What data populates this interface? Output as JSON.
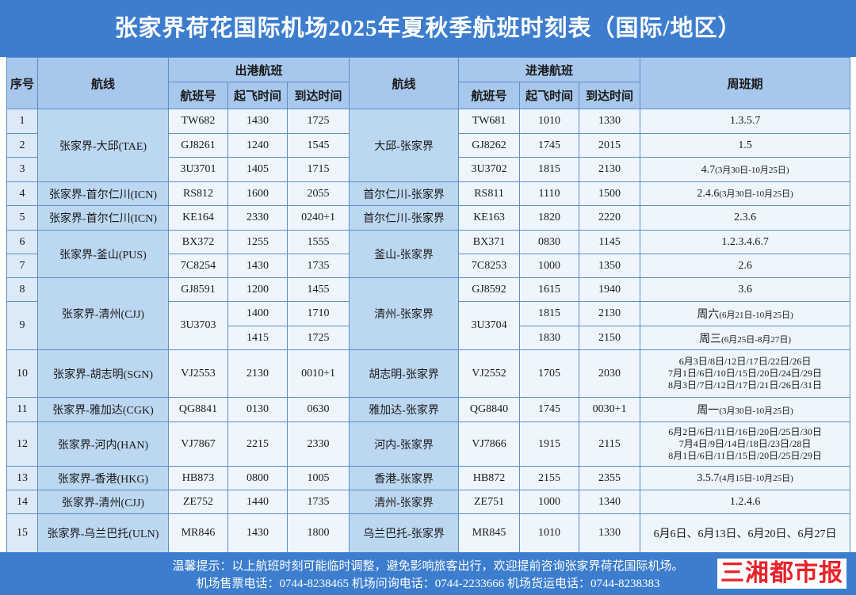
{
  "header": {
    "title": "张家界荷花国际机场2025年夏秋季航班时刻表（国际/地区）"
  },
  "table": {
    "columns": {
      "no": "序号",
      "out_route": "航线",
      "outbound": "出港航班",
      "out_flight": "航班号",
      "out_dep": "起飞时间",
      "out_arr": "到达时间",
      "in_route": "航线",
      "inbound": "进港航班",
      "in_flight": "航班号",
      "in_dep": "起飞时间",
      "in_arr": "到达时间",
      "schedule": "周班期"
    },
    "rows": [
      {
        "no": "1",
        "out_route": "张家界-大邱(TAE)",
        "out_flight": "TW682",
        "out_dep": "1430",
        "out_arr": "1725",
        "in_route": "大邱-张家界",
        "in_flight": "TW681",
        "in_dep": "1010",
        "in_arr": "1330",
        "schedule": [
          "1.3.5.7"
        ]
      },
      {
        "no": "2",
        "out_flight": "GJ8261",
        "out_dep": "1240",
        "out_arr": "1545",
        "in_flight": "GJ8262",
        "in_dep": "1745",
        "in_arr": "2015",
        "schedule": [
          "1.5"
        ]
      },
      {
        "no": "3",
        "out_flight": "3U3701",
        "out_dep": "1405",
        "out_arr": "1715",
        "in_flight": "3U3702",
        "in_dep": "1815",
        "in_arr": "2130",
        "schedule": [
          "4.7"
        ],
        "note": "(3月30日-10月25日)"
      },
      {
        "no": "4",
        "out_route": "张家界-首尔仁川(ICN)",
        "out_flight": "RS812",
        "out_dep": "1600",
        "out_arr": "2055",
        "in_route": "首尔仁川-张家界",
        "in_flight": "RS811",
        "in_dep": "1110",
        "in_arr": "1500",
        "schedule": [
          "2.4.6"
        ],
        "note": "(3月30日-10月25日)"
      },
      {
        "no": "5",
        "out_route": "张家界-首尔仁川(ICN)",
        "out_flight": "KE164",
        "out_dep": "2330",
        "out_arr": "0240+1",
        "in_route": "首尔仁川-张家界",
        "in_flight": "KE163",
        "in_dep": "1820",
        "in_arr": "2220",
        "schedule": [
          "2.3.6"
        ]
      },
      {
        "no": "6",
        "out_route": "张家界-釜山(PUS)",
        "out_flight": "BX372",
        "out_dep": "1255",
        "out_arr": "1555",
        "in_route": "釜山-张家界",
        "in_flight": "BX371",
        "in_dep": "0830",
        "in_arr": "1145",
        "schedule": [
          "1.2.3.4.6.7"
        ]
      },
      {
        "no": "7",
        "out_flight": "7C8254",
        "out_dep": "1430",
        "out_arr": "1735",
        "in_flight": "7C8253",
        "in_dep": "1000",
        "in_arr": "1350",
        "schedule": [
          "2.6"
        ]
      },
      {
        "no": "8",
        "out_route": "张家界-清州(CJJ)",
        "out_flight": "GJ8591",
        "out_dep": "1200",
        "out_arr": "1455",
        "in_route": "清州-张家界",
        "in_flight": "GJ8592",
        "in_dep": "1615",
        "in_arr": "1940",
        "schedule": [
          "3.6"
        ]
      },
      {
        "no": "9",
        "out_flight": "3U3703",
        "out_dep": "1400",
        "out_arr": "1710",
        "in_flight": "3U3704",
        "in_dep": "1815",
        "in_arr": "2130",
        "schedule": [
          "周六"
        ],
        "note": "(6月21日-10月25日)"
      },
      {
        "out_dep": "1415",
        "out_arr": "1725",
        "in_dep": "1830",
        "in_arr": "2150",
        "schedule": [
          "周三"
        ],
        "note": "(6月25日-8月27日)"
      },
      {
        "no": "10",
        "out_route": "张家界-胡志明(SGN)",
        "out_flight": "VJ2553",
        "out_dep": "2130",
        "out_arr": "0010+1",
        "in_route": "胡志明-张家界",
        "in_flight": "VJ2552",
        "in_dep": "1705",
        "in_arr": "2030",
        "schedule": [
          "6月3日/8日/12日/17日/22日/26日",
          "7月1日/6日/10日/15日/20日/24日/29日",
          "8月3日/7日/12日/17日/21日/26日/31日"
        ]
      },
      {
        "no": "11",
        "out_route": "张家界-雅加达(CGK)",
        "out_flight": "QG8841",
        "out_dep": "0130",
        "out_arr": "0630",
        "in_route": "雅加达-张家界",
        "in_flight": "QG8840",
        "in_dep": "1745",
        "in_arr": "0030+1",
        "schedule": [
          "周一"
        ],
        "note": "(3月30日-10月25日)"
      },
      {
        "no": "12",
        "out_route": "张家界-河内(HAN)",
        "out_flight": "VJ7867",
        "out_dep": "2215",
        "out_arr": "2330",
        "in_route": "河内-张家界",
        "in_flight": "VJ7866",
        "in_dep": "1915",
        "in_arr": "2115",
        "schedule": [
          "6月2日/6日/11日/16日/20日/25日/30日",
          "7月4日/9日/14日/18日/23日/28日",
          "8月1日/6日/11日/15日/20日/25日/29日"
        ]
      },
      {
        "no": "13",
        "out_route": "张家界-香港(HKG)",
        "out_flight": "HB873",
        "out_dep": "0800",
        "out_arr": "1005",
        "in_route": "香港-张家界",
        "in_flight": "HB872",
        "in_dep": "2155",
        "in_arr": "2355",
        "schedule": [
          "3.5.7"
        ],
        "note": "(4月15日-10月25日)"
      },
      {
        "no": "14",
        "out_route": "张家界-清州(CJJ)",
        "out_flight": "ZE752",
        "out_dep": "1440",
        "out_arr": "1735",
        "in_route": "清州-张家界",
        "in_flight": "ZE751",
        "in_dep": "1000",
        "in_arr": "1340",
        "schedule": [
          "1.2.4.6"
        ]
      },
      {
        "no": "15",
        "out_route": "张家界-乌兰巴托(ULN)",
        "out_flight": "MR846",
        "out_dep": "1430",
        "out_arr": "1800",
        "in_route": "乌兰巴托-张家界",
        "in_flight": "MR845",
        "in_dep": "1010",
        "in_arr": "1330",
        "schedule": [
          "6月6日、6月13日、6月20日、6月27日"
        ]
      }
    ]
  },
  "footer": {
    "notice": "温馨提示：以上航班时刻可能临时调整，避免影响旅客出行，欢迎提前咨询张家界荷花国际机场。",
    "phones": "机场售票电话：0744-8238465  机场问询电话：0744-2233666  机场货运电话：0744-8238383"
  },
  "logo": "三湘都市报"
}
